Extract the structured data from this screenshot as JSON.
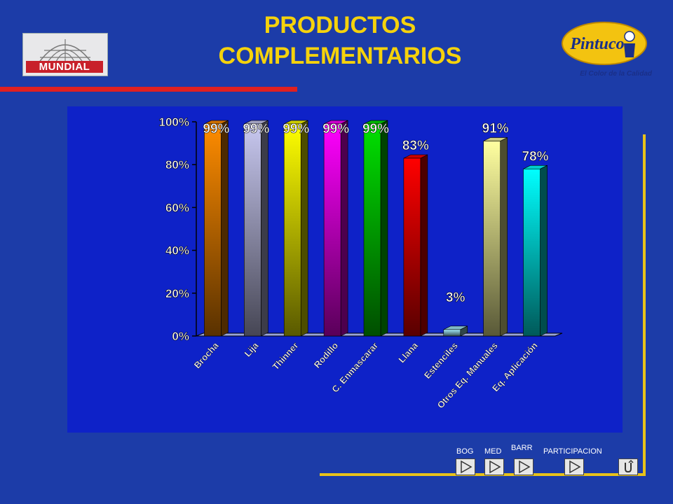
{
  "title_line1": "PRODUCTOS",
  "title_line2": "COMPLEMENTARIOS",
  "logos": {
    "left_brand": "MUNDIAL",
    "right_brand": "Pintuco",
    "right_tagline": "El Color de la Calidad"
  },
  "nav": {
    "labels": [
      "BOG",
      "MED",
      "BARR",
      "PARTICIPACION"
    ],
    "buttons": [
      "play-icon",
      "play-icon",
      "play-icon",
      "play-icon",
      "return-icon"
    ]
  },
  "colors": {
    "background": "#1c3ca8",
    "chart_background": "#0e22c8",
    "title": "#f5d20c",
    "accent_line": "#e02020",
    "frame_line": "#e8c21a"
  },
  "chart_data": {
    "type": "bar",
    "title": "",
    "xlabel": "",
    "ylabel": "",
    "ylim": [
      0,
      100
    ],
    "yticks": [
      0,
      20,
      40,
      60,
      80,
      100
    ],
    "ytick_labels": [
      "0%",
      "20%",
      "40%",
      "60%",
      "80%",
      "100%"
    ],
    "grid": false,
    "legend": "none",
    "categories": [
      "Brocha",
      "Lija",
      "Thinner",
      "Rodillo",
      "C. Enmascarar",
      "Llana",
      "Estenciles",
      "Otros Eq. Manuales",
      "Eq. Aplicación"
    ],
    "values": [
      99,
      99,
      99,
      99,
      99,
      83,
      3,
      91,
      78
    ],
    "value_labels": [
      "99%",
      "99%",
      "99%",
      "99%",
      "99%",
      "83%",
      "3%",
      "91%",
      "78%"
    ],
    "bar_colors": [
      "#ff8c00",
      "#c8c8f0",
      "#ffff00",
      "#ff00ff",
      "#00e000",
      "#ff0000",
      "#a0e8f8",
      "#ffffa0",
      "#00ffff"
    ]
  }
}
